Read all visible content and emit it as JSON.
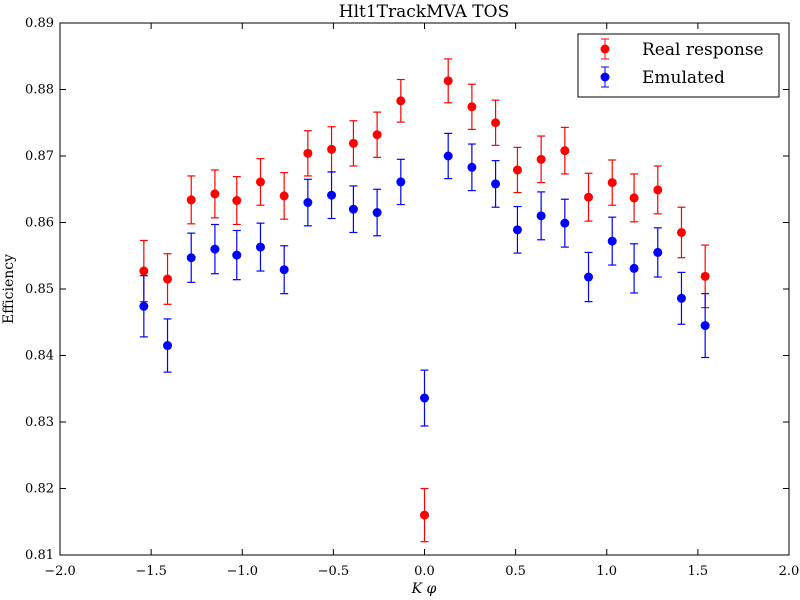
{
  "chart_data": {
    "type": "scatter",
    "title": "Hlt1TrackMVA TOS",
    "xlabel": "K φ",
    "ylabel": "Efficiency",
    "xlim": [
      -2.0,
      2.0
    ],
    "ylim": [
      0.81,
      0.89
    ],
    "xticks": [
      "−2.0",
      "−1.5",
      "−1.0",
      "−0.5",
      "0.0",
      "0.5",
      "1.0",
      "1.5",
      "2.0"
    ],
    "yticks": [
      "0.81",
      "0.82",
      "0.83",
      "0.84",
      "0.85",
      "0.86",
      "0.87",
      "0.88",
      "0.89"
    ],
    "grid": false,
    "legend_position": "top-right",
    "x": [
      -1.54,
      -1.41,
      -1.28,
      -1.15,
      -1.03,
      -0.9,
      -0.77,
      -0.64,
      -0.51,
      -0.39,
      -0.26,
      -0.13,
      0.0,
      0.13,
      0.26,
      0.39,
      0.51,
      0.64,
      0.77,
      0.9,
      1.03,
      1.15,
      1.28,
      1.41,
      1.54
    ],
    "series": [
      {
        "name": "Real response",
        "color": "#ff0000",
        "y": [
          0.8527,
          0.8515,
          0.8634,
          0.8643,
          0.8633,
          0.8661,
          0.864,
          0.8704,
          0.871,
          0.8719,
          0.8732,
          0.8783,
          0.816,
          0.8813,
          0.8774,
          0.875,
          0.8679,
          0.8695,
          0.8708,
          0.8638,
          0.866,
          0.8637,
          0.8649,
          0.8585,
          0.8519
        ],
        "err": [
          0.0046,
          0.0038,
          0.0036,
          0.0036,
          0.0036,
          0.0035,
          0.0035,
          0.0034,
          0.0034,
          0.0034,
          0.0034,
          0.0032,
          0.004,
          0.0033,
          0.0034,
          0.0034,
          0.0034,
          0.0035,
          0.0035,
          0.0036,
          0.0034,
          0.0036,
          0.0036,
          0.0038,
          0.0047
        ]
      },
      {
        "name": "Emulated",
        "color": "#0000ff",
        "y": [
          0.8474,
          0.8415,
          0.8547,
          0.856,
          0.8551,
          0.8563,
          0.8529,
          0.863,
          0.8641,
          0.862,
          0.8615,
          0.8661,
          0.8336,
          0.87,
          0.8683,
          0.8658,
          0.8589,
          0.861,
          0.8599,
          0.8518,
          0.8572,
          0.8531,
          0.8555,
          0.8486,
          0.8445
        ],
        "err": [
          0.0046,
          0.004,
          0.0037,
          0.0037,
          0.0037,
          0.0036,
          0.0036,
          0.0035,
          0.0035,
          0.0035,
          0.0035,
          0.0034,
          0.0042,
          0.0034,
          0.0035,
          0.0035,
          0.0035,
          0.0036,
          0.0036,
          0.0037,
          0.0036,
          0.0037,
          0.0037,
          0.0039,
          0.0048
        ]
      }
    ]
  }
}
